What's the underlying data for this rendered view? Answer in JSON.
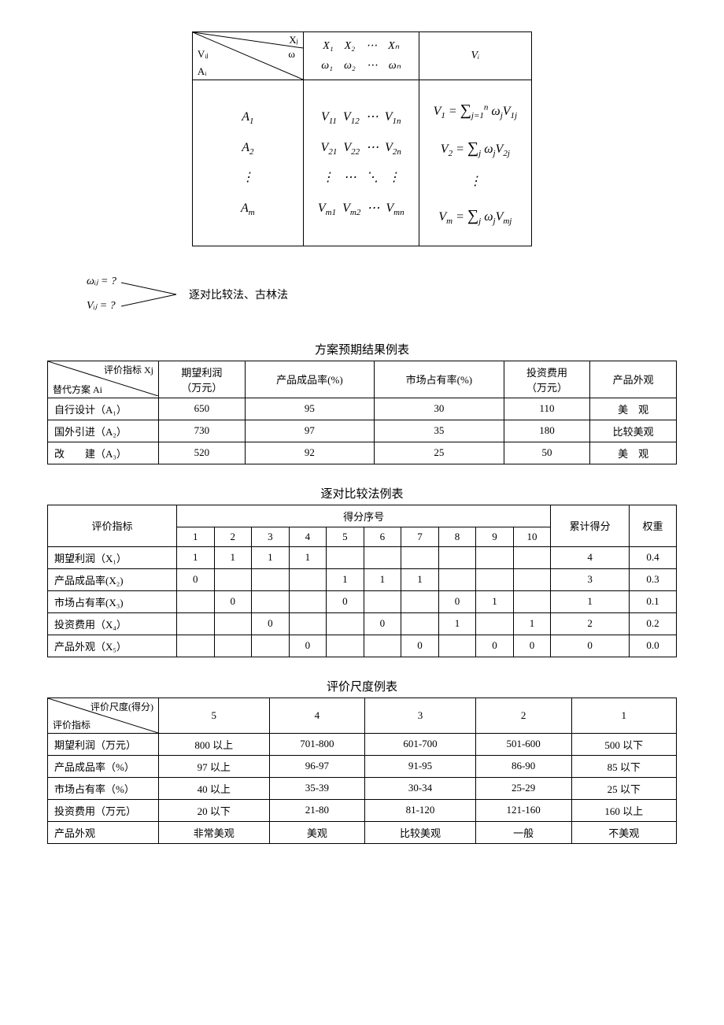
{
  "framework": {
    "diag": {
      "xj": "Xⱼ",
      "omega": "ω",
      "vij": "Vᵢⱼ",
      "ai": "Aᵢ"
    },
    "header_x": "X₁ X₂ ⋯ Xₙ",
    "header_omega": "ω₁ ω₂ ⋯ ωₙ",
    "header_vi": "Vᵢ",
    "col_a": "A₁\nA₂\n⋮\nAₘ",
    "matrix": "V₁₁ V₁₂ ⋯ V₁ₙ\nV₂₁ V₂₂ ⋯ V₂ₙ\n⋮ ⋯ ⋱ ⋮\nVₘ₁ Vₘ₂ ⋯ Vₘₙ",
    "vi_col": "V₁ = ∑ⱼⁿ ωⱼ V₁ⱼ\nV₂ = ∑ⱼ ωⱼ V₂ⱼ\n⋮\nVₘ = ∑ⱼ ωⱼ Vₘⱼ"
  },
  "note": {
    "omega": "ωᵢⱼ = ?",
    "v": "Vᵢⱼ = ?",
    "text": "逐对比较法、古林法"
  },
  "table_expected": {
    "caption": "方案预期结果例表",
    "diag": {
      "top": "评价指标 Xj",
      "bottom": "替代方案 Ai"
    },
    "cols": [
      {
        "label": "期望利润",
        "sub": "（万元）"
      },
      {
        "label": "产品成品率(%)",
        "sub": ""
      },
      {
        "label": "市场占有率(%)",
        "sub": ""
      },
      {
        "label": "投资费用",
        "sub": "（万元）"
      },
      {
        "label": "产品外观",
        "sub": ""
      }
    ],
    "rows": [
      {
        "name": "自行设计（A₁）",
        "vals": [
          "650",
          "95",
          "30",
          "110",
          "美　观"
        ]
      },
      {
        "name": "国外引进（A₂）",
        "vals": [
          "730",
          "97",
          "35",
          "180",
          "比较美观"
        ]
      },
      {
        "name": "改　　建（A₃）",
        "vals": [
          "520",
          "92",
          "25",
          "50",
          "美　观"
        ]
      }
    ]
  },
  "table_pairwise": {
    "caption": "逐对比较法例表",
    "col_metric": "评价指标",
    "col_scoreseq": "得分序号",
    "col_total": "累计得分",
    "col_weight": "权重",
    "seq": [
      "1",
      "2",
      "3",
      "4",
      "5",
      "6",
      "7",
      "8",
      "9",
      "10"
    ],
    "rows": [
      {
        "name": "期望利润（X₁）",
        "s": [
          "1",
          "1",
          "1",
          "1",
          "",
          "",
          "",
          "",
          "",
          ""
        ],
        "total": "4",
        "weight": "0.4"
      },
      {
        "name": "产品成品率(X₂)",
        "s": [
          "0",
          "",
          "",
          "",
          "1",
          "1",
          "1",
          "",
          "",
          ""
        ],
        "total": "3",
        "weight": "0.3"
      },
      {
        "name": "市场占有率(X₃)",
        "s": [
          "",
          "0",
          "",
          "",
          "0",
          "",
          "",
          "0",
          "1",
          ""
        ],
        "total": "1",
        "weight": "0.1"
      },
      {
        "name": "投资费用（X₄）",
        "s": [
          "",
          "",
          "0",
          "",
          "",
          "0",
          "",
          "1",
          "",
          "1"
        ],
        "total": "2",
        "weight": "0.2"
      },
      {
        "name": "产品外观（X₅）",
        "s": [
          "",
          "",
          "",
          "0",
          "",
          "",
          "0",
          "",
          "0",
          "0"
        ],
        "total": "0",
        "weight": "0.0"
      }
    ]
  },
  "table_scale": {
    "caption": "评价尺度例表",
    "diag": {
      "top": "评价尺度(得分)",
      "bottom": "评价指标"
    },
    "cols": [
      "5",
      "4",
      "3",
      "2",
      "1"
    ],
    "rows": [
      {
        "name": "期望利润（万元）",
        "vals": [
          "800 以上",
          "701-800",
          "601-700",
          "501-600",
          "500 以下"
        ]
      },
      {
        "name": "产品成品率（%）",
        "vals": [
          "97 以上",
          "96-97",
          "91-95",
          "86-90",
          "85 以下"
        ]
      },
      {
        "name": "市场占有率（%）",
        "vals": [
          "40 以上",
          "35-39",
          "30-34",
          "25-29",
          "25 以下"
        ]
      },
      {
        "name": "投资费用（万元）",
        "vals": [
          "20 以下",
          "21-80",
          "81-120",
          "121-160",
          "160 以上"
        ]
      },
      {
        "name": "产品外观",
        "vals": [
          "非常美观",
          "美观",
          "比较美观",
          "一般",
          "不美观"
        ]
      }
    ]
  }
}
